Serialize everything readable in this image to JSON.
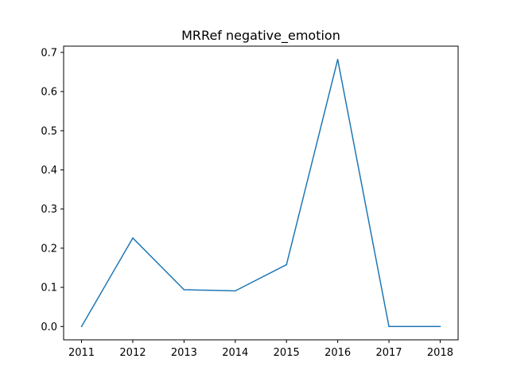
{
  "chart_data": {
    "type": "line",
    "title": "MRRef negative_emotion",
    "xlabel": "",
    "ylabel": "",
    "x": [
      "2011",
      "2012",
      "2013",
      "2014",
      "2015",
      "2016",
      "2017",
      "2018"
    ],
    "series": [
      {
        "values": [
          0.0,
          0.226,
          0.094,
          0.091,
          0.158,
          0.682,
          0.0,
          0.0
        ],
        "color": "#1f77b4"
      }
    ],
    "xlim": [
      2010.65,
      2018.35
    ],
    "ylim": [
      -0.034,
      0.716
    ],
    "yticks": [
      0.0,
      0.1,
      0.2,
      0.3,
      0.4,
      0.5,
      0.6,
      0.7
    ],
    "ytick_labels": [
      "0.0",
      "0.1",
      "0.2",
      "0.3",
      "0.4",
      "0.5",
      "0.6",
      "0.7"
    ],
    "grid": false,
    "legend": "none"
  }
}
